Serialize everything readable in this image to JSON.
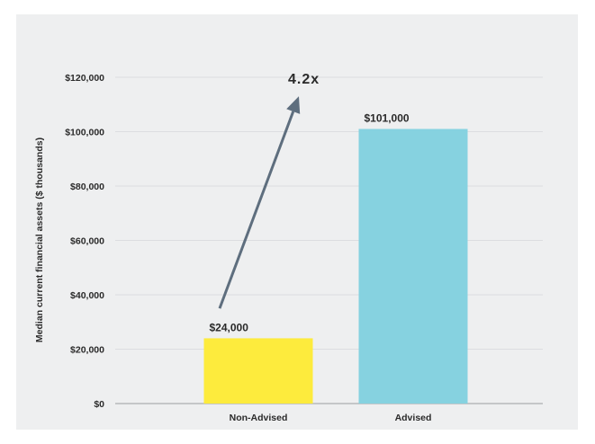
{
  "chart_data": {
    "type": "bar",
    "categories": [
      "Non-Advised",
      "Advised"
    ],
    "values": [
      24000,
      101000
    ],
    "data_labels": [
      "$24,000",
      "$101,000"
    ],
    "colors": [
      "#fdeb3d",
      "#86d2e0"
    ],
    "title": "",
    "xlabel": "",
    "ylabel": "Median current financial assets ($ thousands)",
    "ylim": [
      0,
      120000
    ],
    "yticks": [
      0,
      20000,
      40000,
      60000,
      80000,
      100000,
      120000
    ],
    "ytick_labels": [
      "$0",
      "$20,000",
      "$40,000",
      "$60,000",
      "$80,000",
      "$100,000",
      "$120,000"
    ],
    "grid": true,
    "legend": "none",
    "annotation": {
      "text": "4.2x",
      "arrow_color": "#5e6e7e",
      "arrow_from_value": 35000,
      "arrow_to_value": 113000
    }
  }
}
